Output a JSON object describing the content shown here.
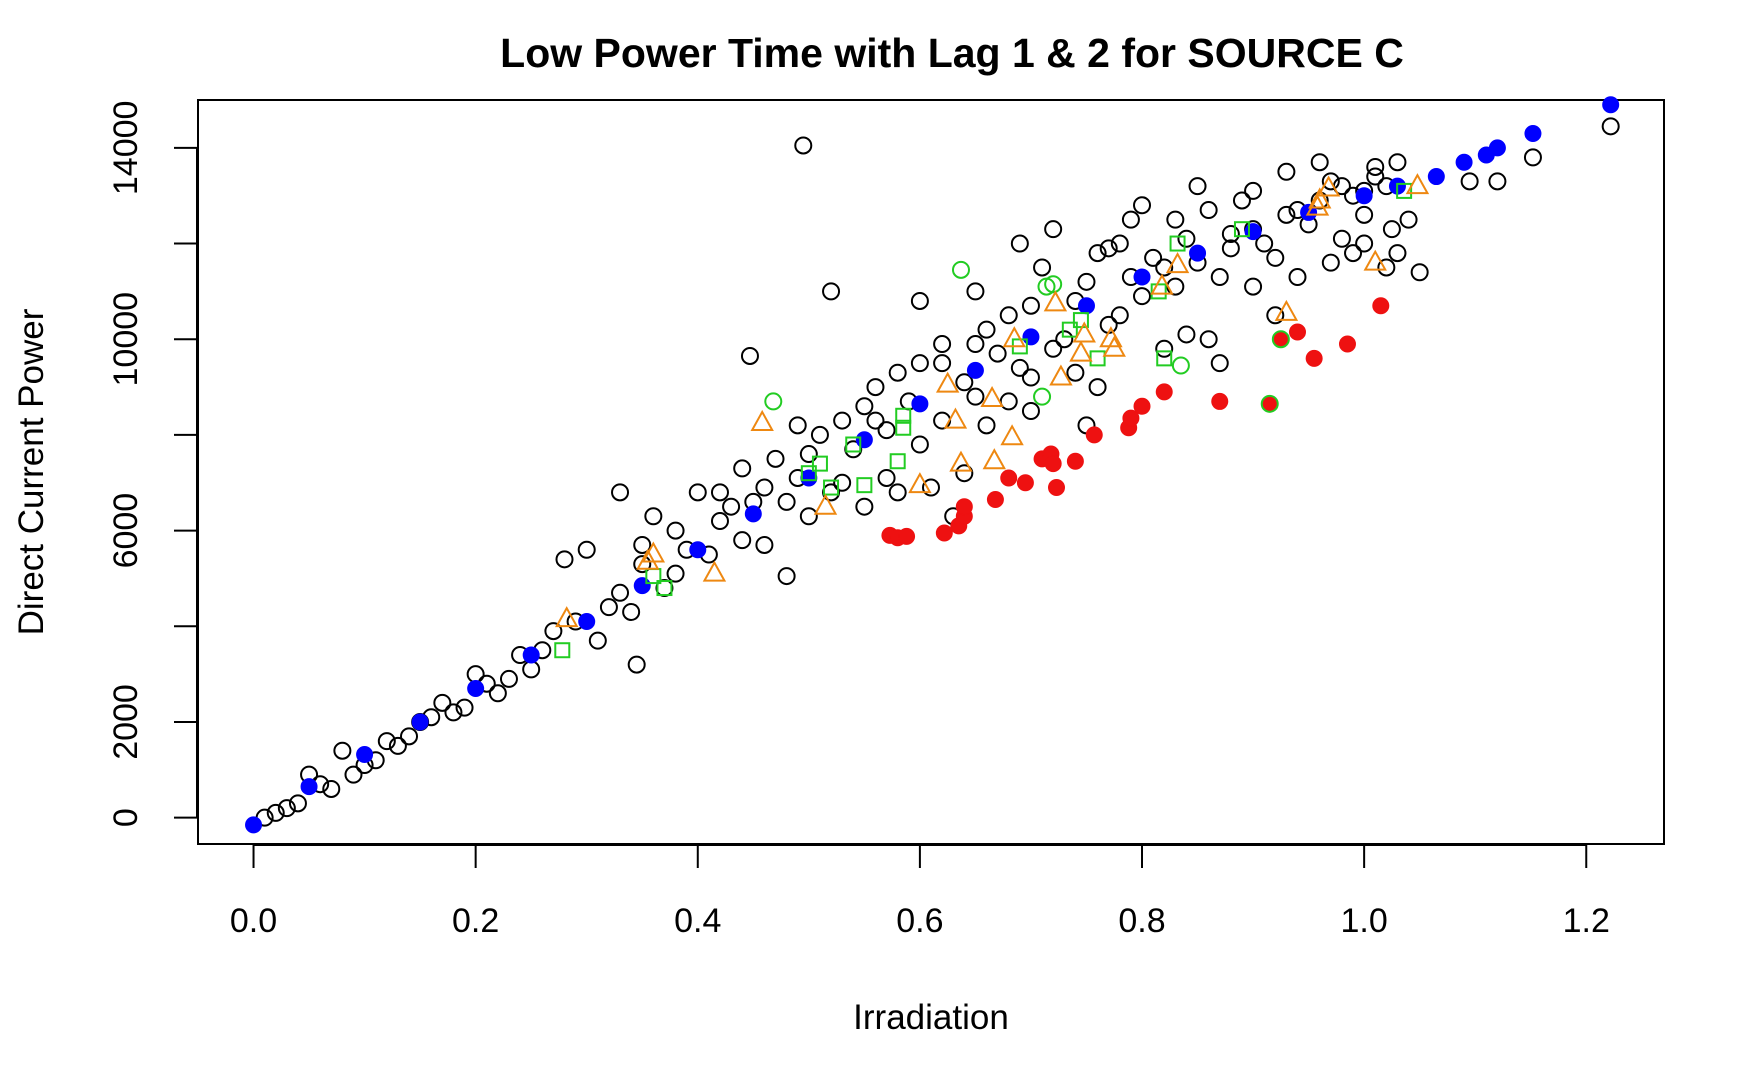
{
  "chart_data": {
    "type": "scatter",
    "title": "Low Power Time with Lag 1 & 2 for SOURCE C",
    "xlabel": "Irradiation",
    "ylabel": "Direct Current Power",
    "xlim": [
      -0.05,
      1.27
    ],
    "ylim": [
      -550,
      15000
    ],
    "xticks": [
      0.0,
      0.2,
      0.4,
      0.6,
      0.8,
      1.0,
      1.2
    ],
    "xtick_labels": [
      "0.0",
      "0.2",
      "0.4",
      "0.6",
      "0.8",
      "1.0",
      "1.2"
    ],
    "yticks": [
      0,
      2000,
      6000,
      10000,
      14000
    ],
    "ytick_labels": [
      "0",
      "2000",
      "6000",
      "10000",
      "14000"
    ],
    "grid": false,
    "legend": "none",
    "series": [
      {
        "marker": "open-circle",
        "color": "#000000",
        "points": [
          [
            0.495,
            14050
          ],
          [
            0.52,
            11000
          ],
          [
            0.447,
            9650
          ],
          [
            0.33,
            6800
          ],
          [
            0.345,
            3200
          ],
          [
            0.48,
            5050
          ],
          [
            0.5,
            7600
          ],
          [
            0.55,
            8600
          ],
          [
            0.6,
            10800
          ],
          [
            0.62,
            9500
          ],
          [
            0.65,
            9900
          ],
          [
            0.7,
            10700
          ],
          [
            0.72,
            12300
          ],
          [
            0.69,
            12000
          ],
          [
            0.75,
            11200
          ],
          [
            0.78,
            12000
          ],
          [
            0.8,
            12800
          ],
          [
            0.85,
            13200
          ],
          [
            0.88,
            12200
          ],
          [
            0.9,
            13100
          ],
          [
            0.93,
            13500
          ],
          [
            0.96,
            13700
          ],
          [
            0.98,
            12100
          ],
          [
            1.0,
            13100
          ],
          [
            1.02,
            13200
          ],
          [
            1.04,
            12500
          ],
          [
            1.05,
            11400
          ],
          [
            1.03,
            11800
          ],
          [
            1.095,
            13300
          ],
          [
            1.12,
            13300
          ],
          [
            1.152,
            13800
          ],
          [
            1.222,
            14450
          ],
          [
            0.66,
            8200
          ],
          [
            0.68,
            8700
          ],
          [
            0.6,
            7800
          ],
          [
            0.58,
            6800
          ],
          [
            0.64,
            7200
          ],
          [
            0.56,
            8300
          ],
          [
            0.7,
            8500
          ],
          [
            0.75,
            8200
          ],
          [
            0.76,
            9000
          ],
          [
            0.78,
            10500
          ],
          [
            0.82,
            9800
          ],
          [
            0.84,
            10100
          ],
          [
            0.86,
            10000
          ],
          [
            0.87,
            9500
          ],
          [
            0.9,
            11100
          ],
          [
            0.92,
            10500
          ],
          [
            0.94,
            11300
          ],
          [
            0.97,
            11600
          ],
          [
            0.99,
            11800
          ],
          [
            1.0,
            12000
          ],
          [
            1.02,
            11500
          ],
          [
            1.025,
            12300
          ],
          [
            0.4,
            6800
          ],
          [
            0.42,
            6200
          ],
          [
            0.44,
            7300
          ],
          [
            0.36,
            6300
          ],
          [
            0.38,
            5100
          ],
          [
            0.3,
            5600
          ],
          [
            0.32,
            4400
          ],
          [
            0.28,
            5400
          ],
          [
            0.25,
            3100
          ],
          [
            0.22,
            2600
          ],
          [
            0.2,
            3000
          ],
          [
            0.15,
            2000
          ],
          [
            0.12,
            1600
          ],
          [
            0.1,
            1100
          ],
          [
            0.08,
            1400
          ],
          [
            0.06,
            700
          ],
          [
            0.05,
            900
          ],
          [
            0.04,
            300
          ],
          [
            0.55,
            6500
          ],
          [
            0.53,
            7000
          ],
          [
            0.51,
            8000
          ],
          [
            0.49,
            8200
          ],
          [
            0.47,
            7500
          ],
          [
            0.45,
            6600
          ],
          [
            0.58,
            9300
          ],
          [
            0.6,
            9500
          ],
          [
            0.62,
            8300
          ],
          [
            0.66,
            10200
          ],
          [
            0.68,
            10500
          ],
          [
            0.73,
            10000
          ],
          [
            0.65,
            11000
          ],
          [
            0.71,
            11500
          ],
          [
            0.74,
            10800
          ],
          [
            0.79,
            11300
          ],
          [
            0.81,
            11700
          ],
          [
            0.83,
            12500
          ],
          [
            0.86,
            12700
          ],
          [
            0.89,
            12900
          ],
          [
            0.91,
            12000
          ],
          [
            0.95,
            12400
          ],
          [
            0.97,
            13300
          ],
          [
            0.99,
            13000
          ],
          [
            1.01,
            13600
          ],
          [
            1.03,
            13700
          ],
          [
            0.63,
            6300
          ],
          [
            0.61,
            6900
          ],
          [
            0.57,
            7100
          ],
          [
            0.54,
            7700
          ],
          [
            0.46,
            5700
          ],
          [
            0.43,
            6500
          ],
          [
            0.39,
            5600
          ],
          [
            0.35,
            5300
          ],
          [
            0.34,
            4300
          ],
          [
            0.31,
            3700
          ],
          [
            0.27,
            3900
          ],
          [
            0.26,
            3500
          ],
          [
            0.23,
            2900
          ],
          [
            0.19,
            2300
          ],
          [
            0.17,
            2400
          ],
          [
            0.14,
            1700
          ],
          [
            0.11,
            1200
          ],
          [
            0.09,
            900
          ],
          [
            0.07,
            600
          ],
          [
            0.03,
            200
          ],
          [
            0.02,
            100
          ],
          [
            0.01,
            0
          ],
          [
            0.64,
            9100
          ],
          [
            0.67,
            9700
          ],
          [
            0.69,
            9400
          ],
          [
            0.72,
            9800
          ],
          [
            0.77,
            10300
          ],
          [
            0.8,
            10900
          ],
          [
            0.83,
            11100
          ],
          [
            0.85,
            11600
          ],
          [
            0.88,
            11900
          ],
          [
            0.9,
            12300
          ],
          [
            0.93,
            12600
          ],
          [
            0.96,
            12900
          ],
          [
            0.98,
            13200
          ],
          [
            0.59,
            8700
          ],
          [
            0.57,
            8100
          ],
          [
            0.52,
            6800
          ],
          [
            0.5,
            6300
          ],
          [
            0.48,
            6600
          ],
          [
            0.44,
            5800
          ],
          [
            0.41,
            5500
          ],
          [
            0.37,
            4800
          ],
          [
            0.33,
            4700
          ],
          [
            0.29,
            4100
          ],
          [
            0.24,
            3400
          ],
          [
            0.21,
            2800
          ],
          [
            0.18,
            2200
          ],
          [
            0.16,
            2100
          ],
          [
            0.13,
            1500
          ],
          [
            0.7,
            9200
          ],
          [
            0.74,
            9300
          ],
          [
            0.76,
            11800
          ],
          [
            0.82,
            11500
          ],
          [
            0.84,
            12100
          ],
          [
            0.87,
            11300
          ],
          [
            0.92,
            11700
          ],
          [
            0.94,
            12700
          ],
          [
            1.0,
            12600
          ],
          [
            1.01,
            13400
          ],
          [
            0.77,
            11900
          ],
          [
            0.79,
            12500
          ],
          [
            0.65,
            8800
          ],
          [
            0.62,
            9900
          ],
          [
            0.56,
            9000
          ],
          [
            0.53,
            8300
          ],
          [
            0.49,
            7100
          ],
          [
            0.46,
            6900
          ],
          [
            0.42,
            6800
          ],
          [
            0.38,
            6000
          ],
          [
            0.35,
            5700
          ]
        ]
      },
      {
        "marker": "filled-circle",
        "color": "#0000ff",
        "points": [
          [
            0.0,
            -150
          ],
          [
            0.05,
            650
          ],
          [
            0.1,
            1320
          ],
          [
            0.15,
            2000
          ],
          [
            0.2,
            2700
          ],
          [
            0.25,
            3400
          ],
          [
            0.3,
            4100
          ],
          [
            0.35,
            4850
          ],
          [
            0.4,
            5600
          ],
          [
            0.45,
            6350
          ],
          [
            0.5,
            7100
          ],
          [
            0.55,
            7900
          ],
          [
            0.6,
            8650
          ],
          [
            0.65,
            9350
          ],
          [
            0.7,
            10050
          ],
          [
            0.75,
            10700
          ],
          [
            0.8,
            11300
          ],
          [
            0.85,
            11800
          ],
          [
            0.9,
            12250
          ],
          [
            0.95,
            12650
          ],
          [
            1.0,
            13000
          ],
          [
            1.03,
            13200
          ],
          [
            1.065,
            13400
          ],
          [
            1.09,
            13700
          ],
          [
            1.11,
            13850
          ],
          [
            1.12,
            14000
          ],
          [
            1.152,
            14300
          ],
          [
            1.222,
            14900
          ]
        ]
      },
      {
        "marker": "filled-circle",
        "color": "#ee1111",
        "points": [
          [
            0.573,
            5900
          ],
          [
            0.58,
            5850
          ],
          [
            0.588,
            5880
          ],
          [
            0.622,
            5950
          ],
          [
            0.635,
            6100
          ],
          [
            0.64,
            6300
          ],
          [
            0.64,
            6500
          ],
          [
            0.668,
            6650
          ],
          [
            0.68,
            7100
          ],
          [
            0.695,
            7000
          ],
          [
            0.71,
            7500
          ],
          [
            0.718,
            7600
          ],
          [
            0.72,
            7400
          ],
          [
            0.723,
            6900
          ],
          [
            0.74,
            7450
          ],
          [
            0.757,
            8000
          ],
          [
            0.788,
            8150
          ],
          [
            0.79,
            8350
          ],
          [
            0.8,
            8600
          ],
          [
            0.82,
            8900
          ],
          [
            0.87,
            8700
          ],
          [
            0.915,
            8650
          ],
          [
            0.925,
            10000
          ],
          [
            0.94,
            10150
          ],
          [
            0.955,
            9600
          ],
          [
            0.985,
            9900
          ],
          [
            1.015,
            10700
          ]
        ]
      },
      {
        "marker": "open-square",
        "color": "#22cc22",
        "points": [
          [
            0.278,
            3500
          ],
          [
            0.36,
            5050
          ],
          [
            0.37,
            4800
          ],
          [
            0.5,
            7200
          ],
          [
            0.51,
            7400
          ],
          [
            0.52,
            6900
          ],
          [
            0.54,
            7800
          ],
          [
            0.55,
            6950
          ],
          [
            0.58,
            7450
          ],
          [
            0.585,
            8150
          ],
          [
            0.585,
            8400
          ],
          [
            0.69,
            9850
          ],
          [
            0.735,
            10200
          ],
          [
            0.745,
            10400
          ],
          [
            0.76,
            9600
          ],
          [
            0.815,
            11000
          ],
          [
            0.82,
            9600
          ],
          [
            0.832,
            12000
          ],
          [
            0.89,
            12300
          ],
          [
            1.036,
            13100
          ]
        ]
      },
      {
        "marker": "open-circle",
        "color": "#22cc22",
        "points": [
          [
            0.468,
            8700
          ],
          [
            0.637,
            11450
          ],
          [
            0.71,
            8800
          ],
          [
            0.714,
            11100
          ],
          [
            0.72,
            11150
          ],
          [
            0.835,
            9450
          ],
          [
            0.915,
            8650
          ],
          [
            0.925,
            10000
          ]
        ]
      },
      {
        "marker": "open-triangle",
        "color": "#ee8811",
        "points": [
          [
            0.282,
            4150
          ],
          [
            0.355,
            5350
          ],
          [
            0.36,
            5500
          ],
          [
            0.415,
            5100
          ],
          [
            0.458,
            8250
          ],
          [
            0.515,
            6500
          ],
          [
            0.6,
            6950
          ],
          [
            0.625,
            9050
          ],
          [
            0.632,
            8300
          ],
          [
            0.637,
            7400
          ],
          [
            0.665,
            8750
          ],
          [
            0.667,
            7450
          ],
          [
            0.683,
            7950
          ],
          [
            0.685,
            10000
          ],
          [
            0.722,
            10750
          ],
          [
            0.727,
            9200
          ],
          [
            0.745,
            9700
          ],
          [
            0.748,
            10100
          ],
          [
            0.772,
            10000
          ],
          [
            0.775,
            9800
          ],
          [
            0.818,
            11100
          ],
          [
            0.832,
            11550
          ],
          [
            0.93,
            10550
          ],
          [
            0.958,
            12750
          ],
          [
            0.96,
            12900
          ],
          [
            0.968,
            13150
          ],
          [
            1.01,
            11600
          ],
          [
            1.048,
            13200
          ]
        ]
      }
    ]
  }
}
